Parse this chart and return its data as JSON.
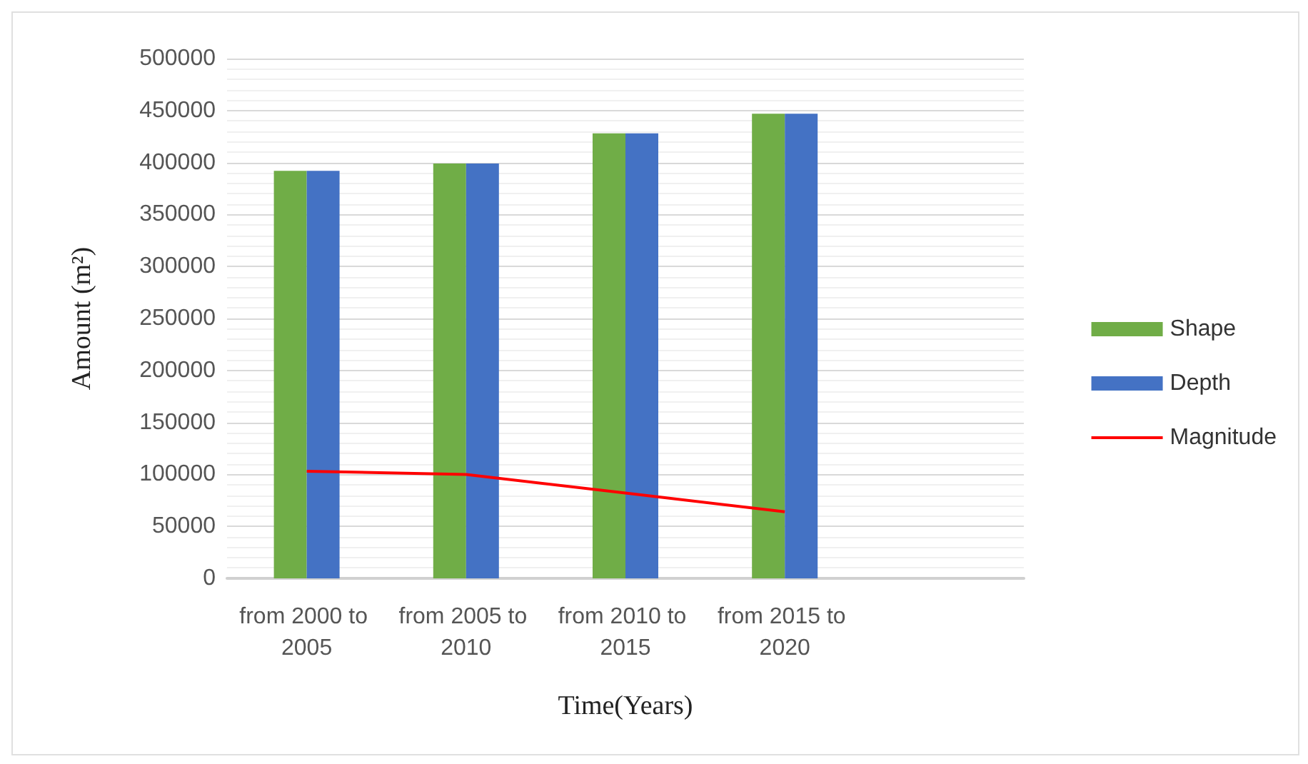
{
  "chart_data": {
    "type": "bar",
    "xlabel": "Time(Years)",
    "ylabel": "Amount (m²)",
    "categories": [
      "from 2000 to 2005",
      "from 2005 to 2010",
      "from 2010 to 2015",
      "from 2015 to 2020",
      null
    ],
    "series": [
      {
        "name": "Shape",
        "color": "#70ad47",
        "values": [
          392000,
          399000,
          428000,
          447000,
          null
        ]
      },
      {
        "name": "Depth",
        "color": "#4472c4",
        "values": [
          392000,
          399000,
          428000,
          447000,
          null
        ]
      },
      {
        "name": "Magnitude",
        "type": "line",
        "color": "#ff0000",
        "values": [
          103000,
          100000,
          82000,
          64000,
          null
        ]
      }
    ],
    "ylim": [
      0,
      500000
    ],
    "yticks": [
      0,
      50000,
      100000,
      150000,
      200000,
      250000,
      300000,
      350000,
      400000,
      450000,
      500000
    ],
    "grid": "y",
    "legend": "right",
    "marker": "none"
  }
}
